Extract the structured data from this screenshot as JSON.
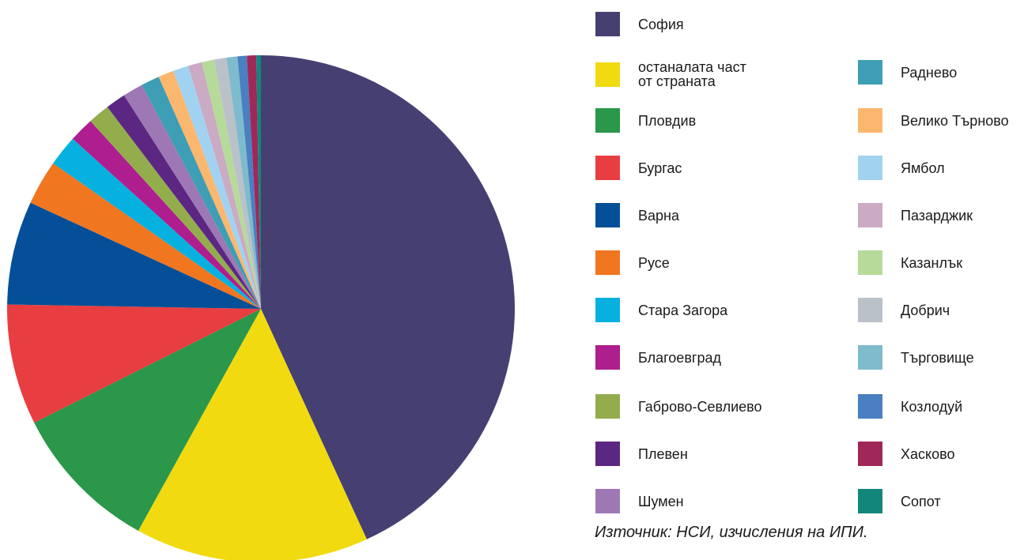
{
  "chart_data": {
    "type": "pie",
    "source": "Източник: НСИ, изчисления на ИПИ.",
    "legend_placement": "right",
    "slices": [
      {
        "label": "София",
        "value": 43.8,
        "color": "#463f72"
      },
      {
        "label": "останалата част\nот страната",
        "value": 15.1,
        "color": "#f1da10"
      },
      {
        "label": "Пловдив",
        "value": 9.7,
        "color": "#2a974a"
      },
      {
        "label": "Бургас",
        "value": 7.8,
        "color": "#e83e41"
      },
      {
        "label": "Варна",
        "value": 6.7,
        "color": "#044f97"
      },
      {
        "label": "Русе",
        "value": 2.9,
        "color": "#f07620"
      },
      {
        "label": "Стара Загора",
        "value": 2.0,
        "color": "#07b1df"
      },
      {
        "label": "Благоевград",
        "value": 1.6,
        "color": "#ae1e8f"
      },
      {
        "label": "Габрово-Севлиево",
        "value": 1.4,
        "color": "#93ad4d"
      },
      {
        "label": "Плевен",
        "value": 1.3,
        "color": "#5b2782"
      },
      {
        "label": "Шумен",
        "value": 1.3,
        "color": "#9e78b4"
      },
      {
        "label": "Раднево",
        "value": 1.2,
        "color": "#3e9eb5"
      },
      {
        "label": "Велико Търново",
        "value": 1.0,
        "color": "#fcb76e"
      },
      {
        "label": "Ямбол",
        "value": 1.0,
        "color": "#a1d3f1"
      },
      {
        "label": "Пазарджик",
        "value": 0.9,
        "color": "#cbaac4"
      },
      {
        "label": "Казанлък",
        "value": 0.8,
        "color": "#b6da99"
      },
      {
        "label": "Добрич",
        "value": 0.8,
        "color": "#bac1c9"
      },
      {
        "label": "Търговище",
        "value": 0.7,
        "color": "#7ebbcc"
      },
      {
        "label": "Козлодуй",
        "value": 0.6,
        "color": "#4a7fc1"
      },
      {
        "label": "Хасково",
        "value": 0.6,
        "color": "#a02859"
      },
      {
        "label": "Сопот",
        "value": 0.3,
        "color": "#11877b"
      }
    ]
  }
}
